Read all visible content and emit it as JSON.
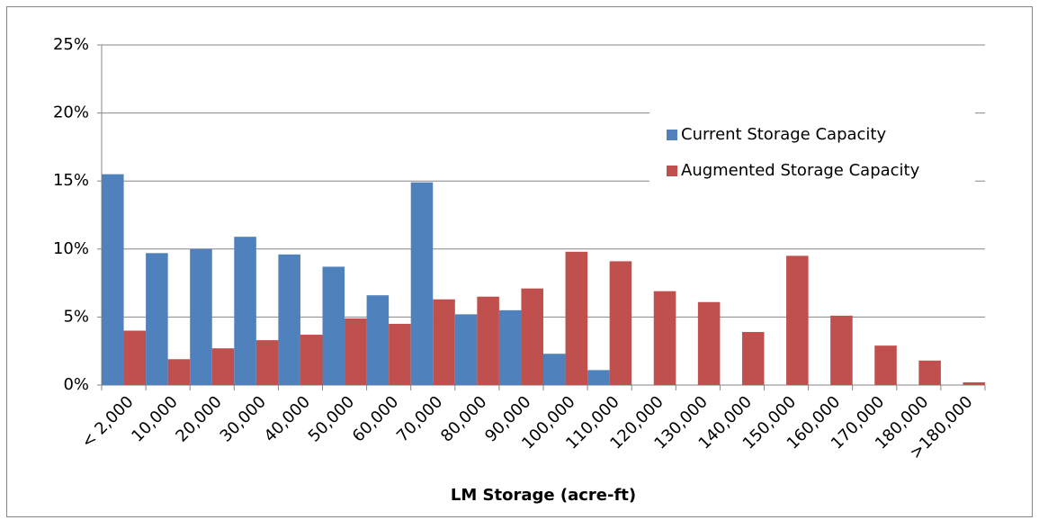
{
  "chart_data": {
    "type": "bar",
    "x_label": "LM Storage (acre-ft)",
    "categories": [
      "< 2,000",
      "10,000",
      "20,000",
      "30,000",
      "40,000",
      "50,000",
      "60,000",
      "70,000",
      "80,000",
      "90,000",
      "100,000",
      "110,000",
      "120,000",
      "130,000",
      "140,000",
      "150,000",
      "160,000",
      "170,000",
      "180,000",
      ">180,000"
    ],
    "series": [
      {
        "name": "Current Storage Capacity",
        "color": "#4f81bd",
        "values": [
          15.5,
          9.7,
          10.0,
          10.9,
          9.6,
          8.7,
          6.6,
          14.9,
          5.2,
          5.5,
          2.3,
          1.1,
          0,
          0,
          0,
          0,
          0,
          0,
          0,
          0
        ]
      },
      {
        "name": "Augmented Storage Capacity",
        "color": "#c0504d",
        "values": [
          4.0,
          1.9,
          2.7,
          3.3,
          3.7,
          4.9,
          4.5,
          6.3,
          6.5,
          7.1,
          9.8,
          9.1,
          6.9,
          6.1,
          3.9,
          9.5,
          5.1,
          2.9,
          1.8,
          0.2
        ]
      }
    ],
    "ylim": [
      0,
      25
    ],
    "yticks": [
      {
        "value": 0,
        "label": "0%"
      },
      {
        "value": 5,
        "label": "5%"
      },
      {
        "value": 10,
        "label": "10%"
      },
      {
        "value": 15,
        "label": "15%"
      },
      {
        "value": 20,
        "label": "20%"
      },
      {
        "value": 25,
        "label": "25%"
      }
    ],
    "grid": true,
    "legend": "upper right"
  }
}
